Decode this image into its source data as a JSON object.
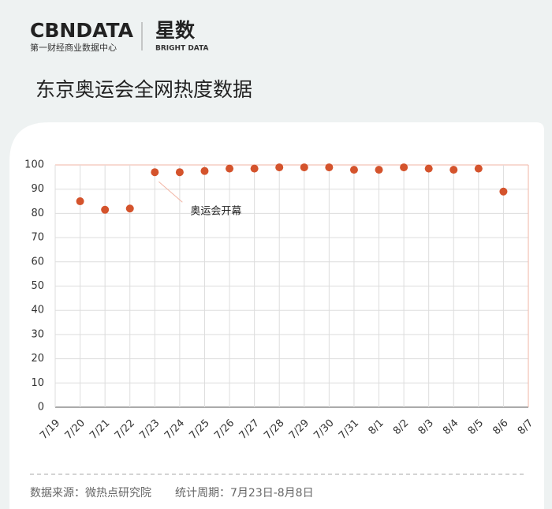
{
  "header": {
    "brand": "CBNDATA",
    "brand_sub": "第一财经商业数据中心",
    "product": "星数",
    "product_sub": "BRIGHT DATA"
  },
  "chart_data": {
    "type": "scatter",
    "title": "东京奥运会全网热度数据",
    "categories": [
      "7/19",
      "7/20",
      "7/21",
      "7/22",
      "7/23",
      "7/24",
      "7/25",
      "7/26",
      "7/27",
      "7/28",
      "7/29",
      "7/30",
      "7/31",
      "8/1",
      "8/2",
      "8/3",
      "8/4",
      "8/5",
      "8/6",
      "8/7"
    ],
    "values": [
      null,
      85,
      81.5,
      82,
      97,
      97,
      97.5,
      98.5,
      98.5,
      99,
      99,
      99,
      98,
      98,
      99,
      98.5,
      98,
      98.5,
      89,
      null
    ],
    "color": "#d4532c",
    "ylim": [
      0,
      100
    ],
    "yticks": [
      0,
      10,
      20,
      30,
      40,
      50,
      60,
      70,
      80,
      90,
      100
    ],
    "grid": true,
    "annotations": [
      {
        "text": "奥运会开幕",
        "category": "7/23"
      }
    ]
  },
  "footer": {
    "source": "数据来源：微热点研究院",
    "period": "统计周期：7月23日-8月8日"
  }
}
